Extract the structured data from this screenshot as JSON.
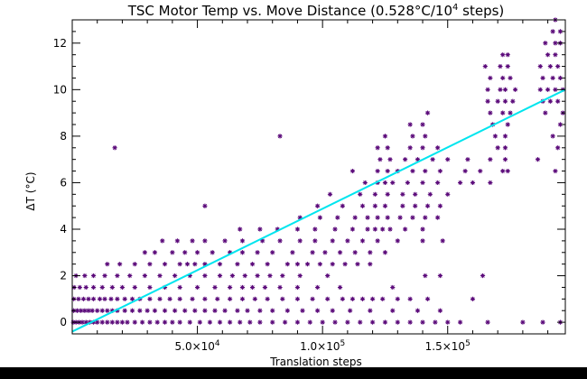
{
  "chart_data": {
    "type": "scatter",
    "title": "TSC Motor Temp vs. Move Distance (0.528°C/10⁴ steps)",
    "title_parts": {
      "prefix": "TSC Motor Temp vs. Move Distance (0.528°C/10",
      "sup": "4",
      "suffix": " steps)"
    },
    "xlabel": "Translation steps",
    "ylabel": "ΔT (°C)",
    "xlim": [
      0,
      197000
    ],
    "ylim": [
      -0.5,
      13
    ],
    "x_ticks": [
      {
        "value": 50000,
        "mantissa": "5.0×10",
        "exp": "4"
      },
      {
        "value": 100000,
        "mantissa": "1.0×10",
        "exp": "5"
      },
      {
        "value": 150000,
        "mantissa": "1.5×10",
        "exp": "5"
      }
    ],
    "y_ticks": [
      0,
      2,
      4,
      6,
      8,
      10,
      12
    ],
    "fit_line": {
      "slope_per_1e4_steps": 0.528,
      "intercept": -0.4,
      "color": "#00e5ee"
    },
    "marker_color": "#5b0a7a",
    "marker": "asterisk",
    "points": [
      [
        400,
        0
      ],
      [
        1500,
        0
      ],
      [
        2800,
        0
      ],
      [
        4000,
        0
      ],
      [
        5500,
        0
      ],
      [
        7000,
        0
      ],
      [
        8500,
        0
      ],
      [
        10000,
        0
      ],
      [
        12000,
        0
      ],
      [
        14000,
        0
      ],
      [
        16000,
        0
      ],
      [
        18000,
        0
      ],
      [
        20000,
        0
      ],
      [
        22000,
        0
      ],
      [
        25000,
        0
      ],
      [
        28000,
        0
      ],
      [
        31000,
        0
      ],
      [
        34000,
        0
      ],
      [
        37000,
        0
      ],
      [
        40000,
        0
      ],
      [
        43000,
        0
      ],
      [
        47000,
        0
      ],
      [
        51000,
        0
      ],
      [
        55000,
        0
      ],
      [
        59000,
        0
      ],
      [
        63000,
        0
      ],
      [
        67000,
        0
      ],
      [
        71000,
        0
      ],
      [
        75000,
        0
      ],
      [
        80000,
        0
      ],
      [
        85000,
        0
      ],
      [
        90000,
        0
      ],
      [
        95000,
        0
      ],
      [
        100000,
        0
      ],
      [
        105000,
        0
      ],
      [
        110000,
        0
      ],
      [
        115000,
        0
      ],
      [
        120000,
        0
      ],
      [
        125000,
        0
      ],
      [
        130000,
        0
      ],
      [
        135000,
        0
      ],
      [
        140000,
        0
      ],
      [
        145000,
        0
      ],
      [
        150000,
        0
      ],
      [
        155000,
        0
      ],
      [
        166000,
        0
      ],
      [
        180000,
        0
      ],
      [
        188000,
        0
      ],
      [
        195000,
        0
      ],
      [
        500,
        0.5
      ],
      [
        2000,
        0.5
      ],
      [
        3500,
        0.5
      ],
      [
        5000,
        0.5
      ],
      [
        6500,
        0.5
      ],
      [
        8000,
        0.5
      ],
      [
        10000,
        0.5
      ],
      [
        12000,
        0.5
      ],
      [
        14000,
        0.5
      ],
      [
        16000,
        0.5
      ],
      [
        18000,
        0.5
      ],
      [
        21000,
        0.5
      ],
      [
        24000,
        0.5
      ],
      [
        27000,
        0.5
      ],
      [
        30000,
        0.5
      ],
      [
        33000,
        0.5
      ],
      [
        37000,
        0.5
      ],
      [
        41000,
        0.5
      ],
      [
        45000,
        0.5
      ],
      [
        49000,
        0.5
      ],
      [
        53000,
        0.5
      ],
      [
        57000,
        0.5
      ],
      [
        61000,
        0.5
      ],
      [
        66000,
        0.5
      ],
      [
        70000,
        0.5
      ],
      [
        75000,
        0.5
      ],
      [
        80000,
        0.5
      ],
      [
        86000,
        0.5
      ],
      [
        92000,
        0.5
      ],
      [
        98000,
        0.5
      ],
      [
        104000,
        0.5
      ],
      [
        111000,
        0.5
      ],
      [
        119000,
        0.5
      ],
      [
        128000,
        0.5
      ],
      [
        138000,
        0.5
      ],
      [
        147000,
        0.5
      ],
      [
        600,
        1
      ],
      [
        2500,
        1
      ],
      [
        4500,
        1
      ],
      [
        6500,
        1
      ],
      [
        8500,
        1
      ],
      [
        11000,
        1
      ],
      [
        13000,
        1
      ],
      [
        15500,
        1
      ],
      [
        18000,
        1
      ],
      [
        21000,
        1
      ],
      [
        24000,
        1
      ],
      [
        27000,
        1
      ],
      [
        31000,
        1
      ],
      [
        35000,
        1
      ],
      [
        39000,
        1
      ],
      [
        43000,
        1
      ],
      [
        48000,
        1
      ],
      [
        53000,
        1
      ],
      [
        58000,
        1
      ],
      [
        63000,
        1
      ],
      [
        68000,
        1
      ],
      [
        73000,
        1
      ],
      [
        78000,
        1
      ],
      [
        84000,
        1
      ],
      [
        90000,
        1
      ],
      [
        96000,
        1
      ],
      [
        102000,
        1
      ],
      [
        108000,
        1
      ],
      [
        112000,
        1
      ],
      [
        116000,
        1
      ],
      [
        120000,
        1
      ],
      [
        124000,
        1
      ],
      [
        130000,
        1
      ],
      [
        135000,
        1
      ],
      [
        142000,
        1
      ],
      [
        160000,
        1
      ],
      [
        800,
        1.5
      ],
      [
        3000,
        1.5
      ],
      [
        5500,
        1.5
      ],
      [
        8500,
        1.5
      ],
      [
        12000,
        1.5
      ],
      [
        16000,
        1.5
      ],
      [
        20000,
        1.5
      ],
      [
        25000,
        1.5
      ],
      [
        31000,
        1.5
      ],
      [
        37000,
        1.5
      ],
      [
        43000,
        1.5
      ],
      [
        50000,
        1.5
      ],
      [
        57000,
        1.5
      ],
      [
        63000,
        1.5
      ],
      [
        68000,
        1.5
      ],
      [
        72000,
        1.5
      ],
      [
        77000,
        1.5
      ],
      [
        83000,
        1.5
      ],
      [
        90000,
        1.5
      ],
      [
        98000,
        1.5
      ],
      [
        107000,
        1.5
      ],
      [
        128000,
        1.5
      ],
      [
        1500,
        2
      ],
      [
        5000,
        2
      ],
      [
        8500,
        2
      ],
      [
        13000,
        2
      ],
      [
        18000,
        2
      ],
      [
        23000,
        2
      ],
      [
        29000,
        2
      ],
      [
        35000,
        2
      ],
      [
        41000,
        2
      ],
      [
        47000,
        2
      ],
      [
        53000,
        2
      ],
      [
        59000,
        2
      ],
      [
        64000,
        2
      ],
      [
        69000,
        2
      ],
      [
        74000,
        2
      ],
      [
        79000,
        2
      ],
      [
        84000,
        2
      ],
      [
        91000,
        2
      ],
      [
        102000,
        2
      ],
      [
        141000,
        2
      ],
      [
        147000,
        2
      ],
      [
        164000,
        2
      ],
      [
        14000,
        2.5
      ],
      [
        19000,
        2.5
      ],
      [
        25000,
        2.5
      ],
      [
        31000,
        2.5
      ],
      [
        37000,
        2.5
      ],
      [
        43000,
        2.5
      ],
      [
        46000,
        2.5
      ],
      [
        49000,
        2.5
      ],
      [
        53000,
        2.5
      ],
      [
        59000,
        2.5
      ],
      [
        66000,
        2.5
      ],
      [
        72000,
        2.5
      ],
      [
        78000,
        2.5
      ],
      [
        86000,
        2.5
      ],
      [
        90000,
        2.5
      ],
      [
        94000,
        2.5
      ],
      [
        99000,
        2.5
      ],
      [
        104000,
        2.5
      ],
      [
        109000,
        2.5
      ],
      [
        114000,
        2.5
      ],
      [
        119000,
        2.5
      ],
      [
        29000,
        3
      ],
      [
        33000,
        3
      ],
      [
        40000,
        3
      ],
      [
        45000,
        3
      ],
      [
        50000,
        3
      ],
      [
        56000,
        3
      ],
      [
        63000,
        3
      ],
      [
        68000,
        3
      ],
      [
        74000,
        3
      ],
      [
        80000,
        3
      ],
      [
        88000,
        3
      ],
      [
        96000,
        3
      ],
      [
        101000,
        3
      ],
      [
        107000,
        3
      ],
      [
        113000,
        3
      ],
      [
        119000,
        3
      ],
      [
        125000,
        3
      ],
      [
        36000,
        3.5
      ],
      [
        42000,
        3.5
      ],
      [
        48000,
        3.5
      ],
      [
        53000,
        3.5
      ],
      [
        61000,
        3.5
      ],
      [
        68000,
        3.5
      ],
      [
        76000,
        3.5
      ],
      [
        83000,
        3.5
      ],
      [
        91000,
        3.5
      ],
      [
        97000,
        3.5
      ],
      [
        104000,
        3.5
      ],
      [
        110000,
        3.5
      ],
      [
        116000,
        3.5
      ],
      [
        122000,
        3.5
      ],
      [
        130000,
        3.5
      ],
      [
        140000,
        3.5
      ],
      [
        148000,
        3.5
      ],
      [
        67000,
        4
      ],
      [
        75000,
        4
      ],
      [
        82000,
        4
      ],
      [
        90000,
        4
      ],
      [
        97000,
        4
      ],
      [
        105000,
        4
      ],
      [
        112000,
        4
      ],
      [
        118000,
        4
      ],
      [
        121000,
        4
      ],
      [
        124000,
        4
      ],
      [
        127000,
        4
      ],
      [
        133000,
        4
      ],
      [
        140000,
        4
      ],
      [
        91000,
        4.5
      ],
      [
        99000,
        4.5
      ],
      [
        106000,
        4.5
      ],
      [
        113000,
        4.5
      ],
      [
        118000,
        4.5
      ],
      [
        122000,
        4.5
      ],
      [
        126000,
        4.5
      ],
      [
        131000,
        4.5
      ],
      [
        136000,
        4.5
      ],
      [
        141000,
        4.5
      ],
      [
        146000,
        4.5
      ],
      [
        53000,
        5
      ],
      [
        98000,
        5
      ],
      [
        108000,
        5
      ],
      [
        116000,
        5
      ],
      [
        121000,
        5
      ],
      [
        125000,
        5
      ],
      [
        132000,
        5
      ],
      [
        137000,
        5
      ],
      [
        142000,
        5
      ],
      [
        147000,
        5
      ],
      [
        103000,
        5.5
      ],
      [
        115000,
        5.5
      ],
      [
        121000,
        5.5
      ],
      [
        126000,
        5.5
      ],
      [
        132000,
        5.5
      ],
      [
        137000,
        5.5
      ],
      [
        143000,
        5.5
      ],
      [
        150000,
        5.5
      ],
      [
        117000,
        6
      ],
      [
        122000,
        6
      ],
      [
        125000,
        6
      ],
      [
        128000,
        6
      ],
      [
        134000,
        6
      ],
      [
        140000,
        6
      ],
      [
        146000,
        6
      ],
      [
        155000,
        6
      ],
      [
        160000,
        6
      ],
      [
        167000,
        6
      ],
      [
        112000,
        6.5
      ],
      [
        122000,
        6.5
      ],
      [
        126000,
        6.5
      ],
      [
        130000,
        6.5
      ],
      [
        136000,
        6.5
      ],
      [
        141000,
        6.5
      ],
      [
        147000,
        6.5
      ],
      [
        157000,
        6.5
      ],
      [
        163000,
        6.5
      ],
      [
        172000,
        6.5
      ],
      [
        174000,
        6.5
      ],
      [
        193000,
        6.5
      ],
      [
        123000,
        7
      ],
      [
        127000,
        7
      ],
      [
        133000,
        7
      ],
      [
        138000,
        7
      ],
      [
        144000,
        7
      ],
      [
        150000,
        7
      ],
      [
        158000,
        7
      ],
      [
        167000,
        7
      ],
      [
        173000,
        7
      ],
      [
        186000,
        7
      ],
      [
        17000,
        7.5
      ],
      [
        122000,
        7.5
      ],
      [
        126000,
        7.5
      ],
      [
        135000,
        7.5
      ],
      [
        140000,
        7.5
      ],
      [
        146000,
        7.5
      ],
      [
        170000,
        7.5
      ],
      [
        173000,
        7.5
      ],
      [
        194000,
        7.5
      ],
      [
        83000,
        8
      ],
      [
        125000,
        8
      ],
      [
        136000,
        8
      ],
      [
        141000,
        8
      ],
      [
        169000,
        8
      ],
      [
        173000,
        8
      ],
      [
        192000,
        8
      ],
      [
        135000,
        8.5
      ],
      [
        140000,
        8.5
      ],
      [
        168000,
        8.5
      ],
      [
        174000,
        8.5
      ],
      [
        195000,
        8.5
      ],
      [
        142000,
        9
      ],
      [
        167000,
        9
      ],
      [
        172000,
        9
      ],
      [
        175000,
        9
      ],
      [
        189000,
        9
      ],
      [
        196000,
        9
      ],
      [
        166000,
        9.5
      ],
      [
        170000,
        9.5
      ],
      [
        173000,
        9.5
      ],
      [
        176000,
        9.5
      ],
      [
        188000,
        9.5
      ],
      [
        191000,
        9.5
      ],
      [
        194000,
        9.5
      ],
      [
        166000,
        10
      ],
      [
        171000,
        10
      ],
      [
        173000,
        10
      ],
      [
        177000,
        10
      ],
      [
        187000,
        10
      ],
      [
        190000,
        10
      ],
      [
        193000,
        10
      ],
      [
        196000,
        10
      ],
      [
        167000,
        10.5
      ],
      [
        172000,
        10.5
      ],
      [
        175000,
        10.5
      ],
      [
        188000,
        10.5
      ],
      [
        192000,
        10.5
      ],
      [
        195000,
        10.5
      ],
      [
        165000,
        11
      ],
      [
        171000,
        11
      ],
      [
        174000,
        11
      ],
      [
        187000,
        11
      ],
      [
        191000,
        11
      ],
      [
        194000,
        11
      ],
      [
        172000,
        11.5
      ],
      [
        174000,
        11.5
      ],
      [
        190000,
        11.5
      ],
      [
        193000,
        11.5
      ],
      [
        189000,
        12
      ],
      [
        193000,
        12
      ],
      [
        195000,
        12
      ],
      [
        192000,
        12.5
      ],
      [
        195000,
        12.5
      ],
      [
        193000,
        13
      ]
    ]
  }
}
